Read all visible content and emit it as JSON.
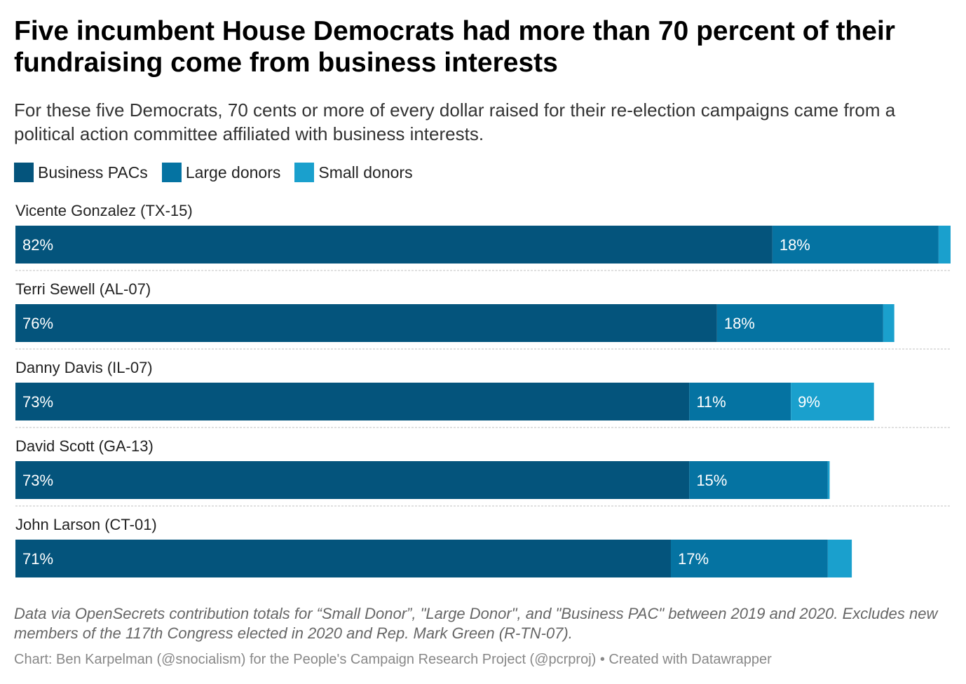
{
  "title": "Five incumbent House Democrats had more than 70 percent of their fundraising come from business interests",
  "subtitle": "For these five Democrats, 70 cents or more of every dollar raised for their re-election campaigns came from a political action committee affiliated with business interests.",
  "legend": [
    {
      "label": "Business PACs",
      "color": "#04547c"
    },
    {
      "label": "Large donors",
      "color": "#0573a2"
    },
    {
      "label": "Small donors",
      "color": "#1aa0cd"
    }
  ],
  "chart_data": {
    "type": "bar",
    "orientation": "horizontal",
    "stacked": true,
    "categories": [
      "Vicente Gonzalez (TX-15)",
      "Terri Sewell (AL-07)",
      "Danny Davis (IL-07)",
      "David Scott (GA-13)",
      "John Larson (CT-01)"
    ],
    "series": [
      {
        "name": "Business PACs",
        "color": "#04547c",
        "values": [
          82,
          76,
          73,
          73,
          71
        ],
        "labels": [
          "82%",
          "76%",
          "73%",
          "73%",
          "71%"
        ]
      },
      {
        "name": "Large donors",
        "color": "#0573a2",
        "values": [
          18,
          18,
          11,
          15,
          17
        ],
        "labels": [
          "18%",
          "18%",
          "11%",
          "15%",
          "17%"
        ]
      },
      {
        "name": "Small donors",
        "color": "#1aa0cd",
        "values": [
          1.3,
          1.2,
          9,
          0.2,
          2.6
        ],
        "labels": [
          "",
          "",
          "9%",
          "",
          ""
        ]
      }
    ],
    "xlim": [
      0,
      101.3
    ],
    "grid": false,
    "legend_position": "top-left"
  },
  "notes": "Data via OpenSecrets contribution totals for “Small Donor”, \"Large Donor\", and \"Business PAC\" between 2019 and 2020. Excludes new members of the 117th Congress elected in 2020 and Rep. Mark Green (R-TN-07).",
  "credit": "Chart: Ben Karpelman (@snocialism) for the People's Campaign Research Project (@pcrproj) • Created with Datawrapper"
}
